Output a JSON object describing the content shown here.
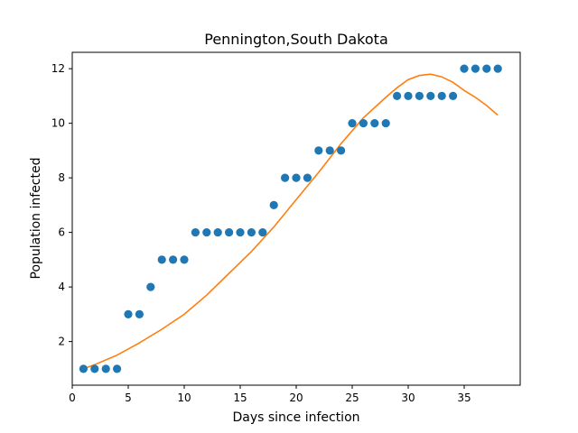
{
  "chart_data": {
    "type": "scatter",
    "title": "Pennington,South Dakota",
    "xlabel": "Days since infection",
    "ylabel": "Population infected",
    "xlim": [
      0,
      40
    ],
    "ylim": [
      0.4,
      12.6
    ],
    "xticks": [
      0,
      5,
      10,
      15,
      20,
      25,
      30,
      35
    ],
    "yticks": [
      2,
      4,
      6,
      8,
      10,
      12
    ],
    "grid": false,
    "series": [
      {
        "kind": "scatter",
        "color": "#1f77b4",
        "x": [
          1,
          2,
          3,
          4,
          5,
          6,
          7,
          8,
          9,
          10,
          11,
          12,
          13,
          14,
          15,
          16,
          17,
          18,
          19,
          20,
          21,
          22,
          23,
          24,
          25,
          26,
          27,
          28,
          29,
          30,
          31,
          32,
          33,
          34,
          35,
          36,
          37,
          38
        ],
        "y": [
          1,
          1,
          1,
          1,
          3,
          3,
          4,
          5,
          5,
          5,
          6,
          6,
          6,
          6,
          6,
          6,
          6,
          7,
          8,
          8,
          8,
          9,
          9,
          9,
          10,
          10,
          10,
          10,
          11,
          11,
          11,
          11,
          11,
          11,
          12,
          12,
          12,
          12
        ]
      },
      {
        "kind": "line",
        "color": "#ff7f0e",
        "x": [
          1,
          2,
          4,
          6,
          8,
          10,
          12,
          14,
          16,
          18,
          20,
          22,
          24,
          26,
          28,
          29,
          30,
          31,
          32,
          33,
          34,
          35,
          36,
          37,
          38
        ],
        "y": [
          1.0,
          1.15,
          1.5,
          1.95,
          2.45,
          3.0,
          3.7,
          4.5,
          5.3,
          6.2,
          7.2,
          8.2,
          9.25,
          10.2,
          10.95,
          11.3,
          11.6,
          11.75,
          11.8,
          11.7,
          11.5,
          11.2,
          10.95,
          10.65,
          10.3
        ]
      }
    ]
  }
}
